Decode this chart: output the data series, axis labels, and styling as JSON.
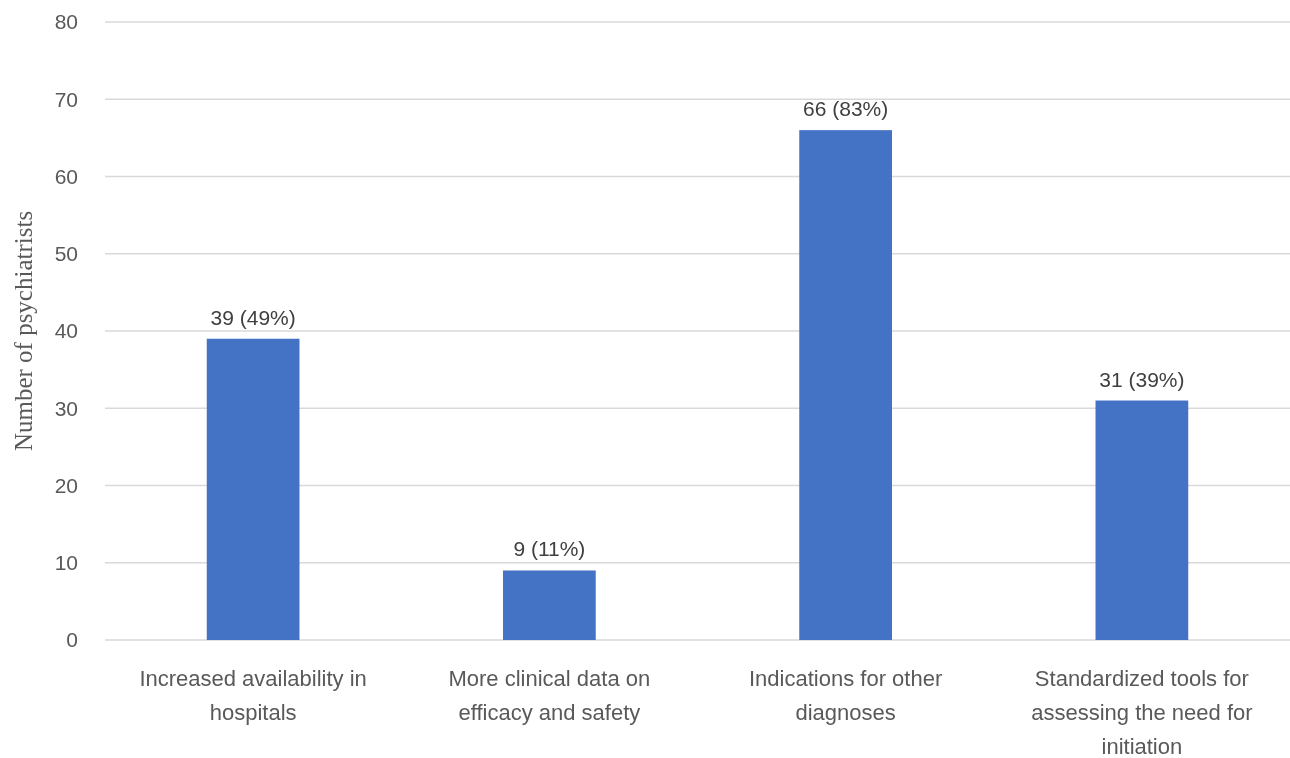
{
  "chart_data": {
    "type": "bar",
    "ylabel": "Number of psychiatrists",
    "categories": [
      "Increased availability in hospitals",
      "More clinical data on efficacy and safety",
      "Indications for other diagnoses",
      "Standardized tools for assessing the need for initiation"
    ],
    "values": [
      39,
      9,
      66,
      31
    ],
    "color": "#4472c4",
    "value_labels": [
      "39 (49%)",
      "9 (11%)",
      "66 (83%)",
      "31 (39%)"
    ],
    "ylim": [
      0,
      80
    ],
    "yticks": [
      0,
      10,
      20,
      30,
      40,
      50,
      60,
      70,
      80
    ],
    "grid": "y"
  }
}
